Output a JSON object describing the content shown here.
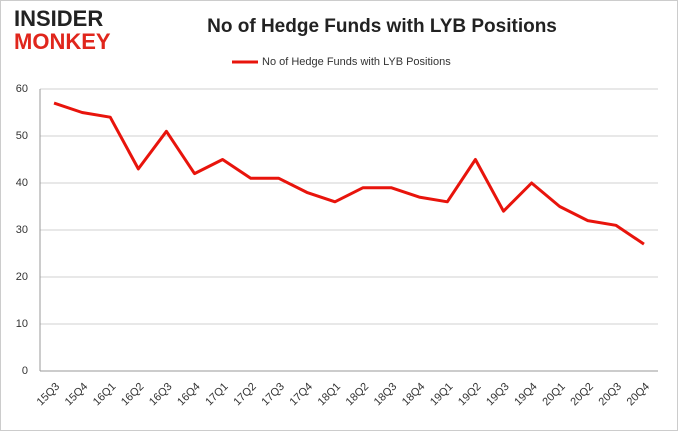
{
  "logo": {
    "line1": "INSIDER",
    "line2": "MONKEY"
  },
  "chart_data": {
    "type": "line",
    "title": "No of Hedge Funds with LYB Positions",
    "categories": [
      "15Q3",
      "15Q4",
      "16Q1",
      "16Q2",
      "16Q3",
      "16Q4",
      "17Q1",
      "17Q2",
      "17Q3",
      "17Q4",
      "18Q1",
      "18Q2",
      "18Q3",
      "18Q4",
      "19Q1",
      "19Q2",
      "19Q3",
      "19Q4",
      "20Q1",
      "20Q2",
      "20Q3",
      "20Q4"
    ],
    "series": [
      {
        "name": "No of Hedge Funds with LYB Positions",
        "color": "#e8140c",
        "values": [
          57,
          55,
          54,
          43,
          51,
          42,
          45,
          41,
          41,
          38,
          36,
          39,
          39,
          37,
          36,
          45,
          34,
          40,
          35,
          32,
          31,
          27
        ]
      }
    ],
    "ylim": [
      0,
      60
    ],
    "yticks": [
      0,
      10,
      20,
      30,
      40,
      50,
      60
    ],
    "grid": true,
    "legend": "top"
  }
}
